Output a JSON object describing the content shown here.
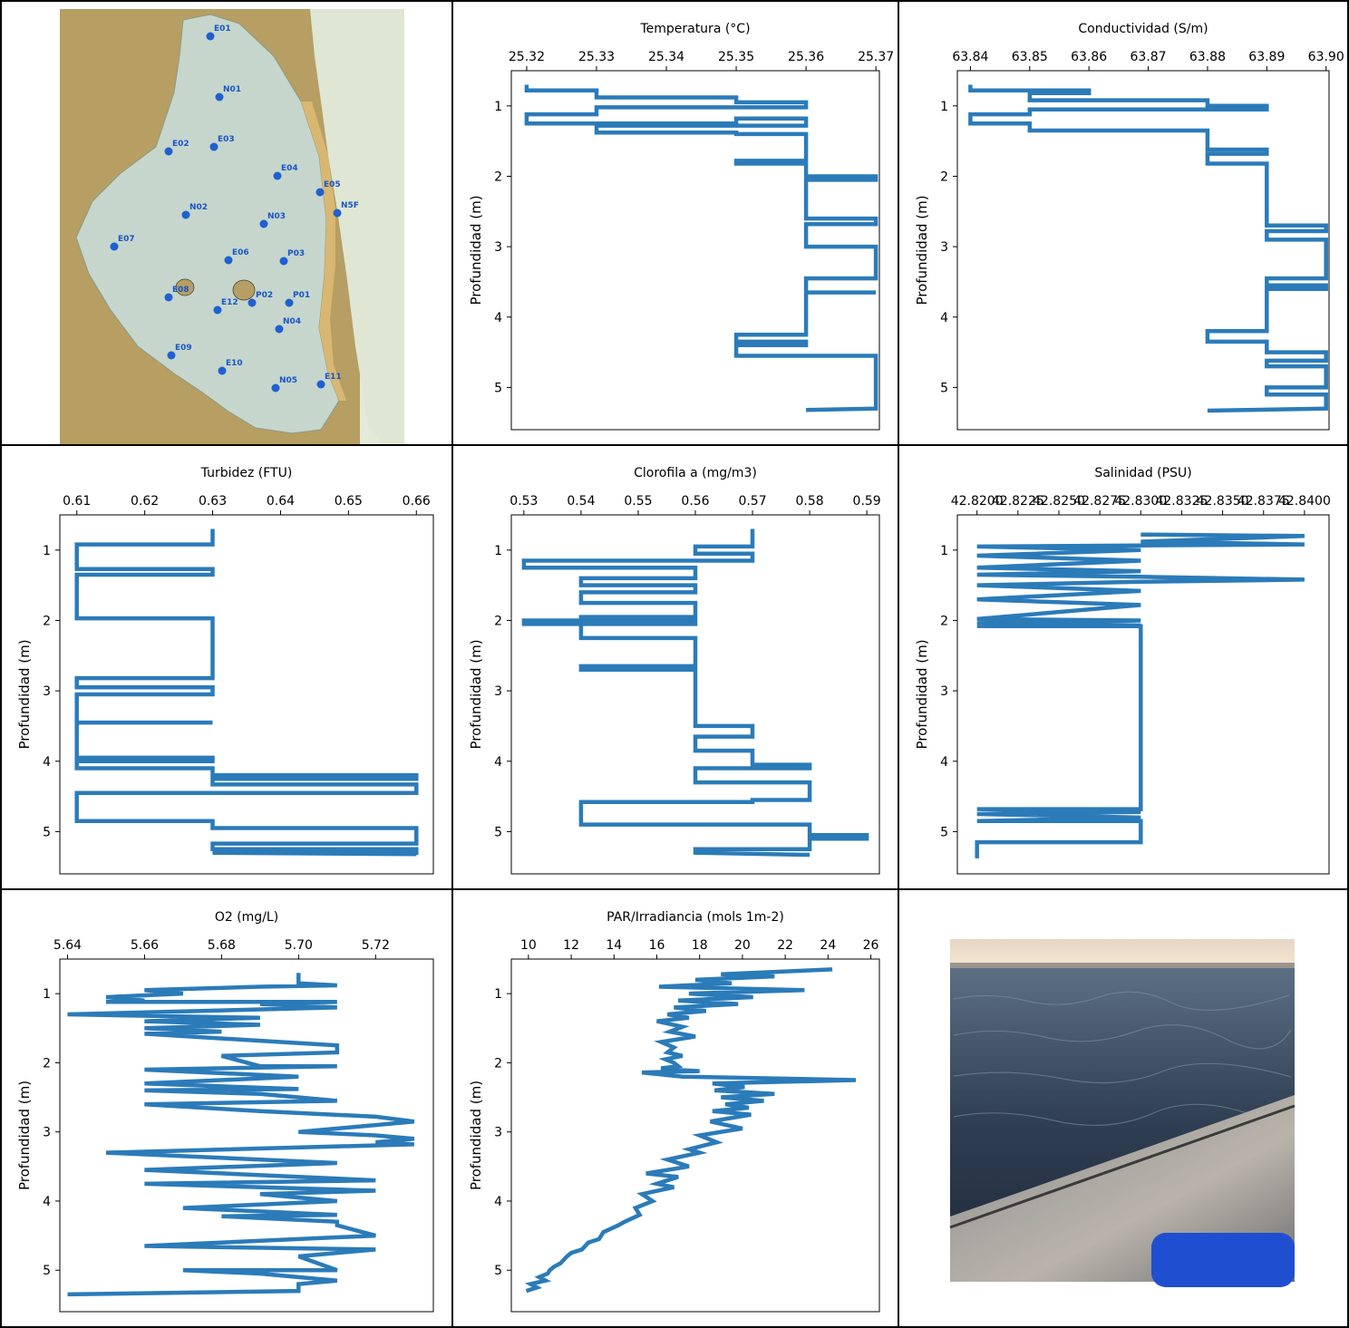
{
  "map": {
    "stations": [
      {
        "id": "E01",
        "label": "E01"
      },
      {
        "id": "N01",
        "label": "N01"
      },
      {
        "id": "E02",
        "label": "E02"
      },
      {
        "id": "E03",
        "label": "E03"
      },
      {
        "id": "E04",
        "label": "E04"
      },
      {
        "id": "E05",
        "label": "E05"
      },
      {
        "id": "N5F",
        "label": "N5F"
      },
      {
        "id": "N02",
        "label": "N02"
      },
      {
        "id": "N03",
        "label": "N03"
      },
      {
        "id": "E07",
        "label": "E07"
      },
      {
        "id": "E06",
        "label": "E06"
      },
      {
        "id": "P03",
        "label": "P03"
      },
      {
        "id": "E08",
        "label": "E08"
      },
      {
        "id": "E12",
        "label": "E12"
      },
      {
        "id": "P02",
        "label": "P02"
      },
      {
        "id": "P01",
        "label": "P01"
      },
      {
        "id": "N04",
        "label": "N04"
      },
      {
        "id": "E09",
        "label": "E09"
      },
      {
        "id": "E10",
        "label": "E10"
      },
      {
        "id": "N05",
        "label": "N05"
      },
      {
        "id": "E11",
        "label": "E11"
      }
    ],
    "colors": {
      "water": "#c6d6cc",
      "land": "#b79e62",
      "station": "#1f5fd1"
    }
  },
  "chart_data": [
    {
      "type": "line",
      "title": "Temperatura (°C)",
      "ylabel": "Profundidad (m)",
      "xlim": [
        25.3178,
        25.3705
      ],
      "ylim": [
        5.6,
        0.5
      ],
      "y_inverted": true,
      "xticks": [
        "25.32",
        "25.33",
        "25.34",
        "25.35",
        "25.36",
        "25.37"
      ],
      "xtick_values": [
        25.32,
        25.33,
        25.34,
        25.35,
        25.36,
        25.37
      ],
      "yticks": [
        "1",
        "2",
        "3",
        "4",
        "5"
      ],
      "ytick_values": [
        1,
        2,
        3,
        4,
        5
      ],
      "x": [
        25.32,
        25.32,
        25.33,
        25.33,
        25.35,
        25.35,
        25.36,
        25.36,
        25.33,
        25.33,
        25.32,
        25.32,
        25.35,
        25.35,
        25.36,
        25.36,
        25.33,
        25.33,
        25.35,
        25.35,
        25.36,
        25.36,
        25.35,
        25.35,
        25.36,
        25.36,
        25.37,
        25.37,
        25.36,
        25.36,
        25.37,
        25.37,
        25.36,
        25.36,
        25.37,
        25.37,
        25.36,
        25.36,
        25.37,
        25.37,
        25.36,
        25.36,
        25.35,
        25.35,
        25.36,
        25.36,
        25.35,
        25.35,
        25.36,
        25.36,
        25.37,
        25.37,
        25.36
      ],
      "y": [
        0.7,
        0.78,
        0.78,
        0.88,
        0.88,
        0.95,
        0.95,
        1.02,
        1.02,
        1.12,
        1.12,
        1.25,
        1.25,
        1.18,
        1.18,
        1.28,
        1.28,
        1.38,
        1.38,
        1.4,
        1.4,
        1.78,
        1.78,
        1.82,
        1.82,
        2.0,
        2.0,
        2.05,
        2.05,
        2.6,
        2.6,
        2.68,
        2.68,
        3.0,
        3.0,
        3.45,
        3.45,
        3.65,
        3.65,
        3.65,
        3.65,
        4.25,
        4.25,
        4.35,
        4.35,
        4.4,
        4.4,
        4.55,
        4.55,
        4.55,
        4.55,
        5.3,
        5.32
      ],
      "color": "#2b7bb9"
    },
    {
      "type": "line",
      "title": "Conductividad (S/m)",
      "ylabel": "Profundidad (m)",
      "xlim": [
        63.8378,
        63.9005
      ],
      "ylim": [
        5.6,
        0.5
      ],
      "y_inverted": true,
      "xticks": [
        "63.84",
        "63.85",
        "63.86",
        "63.87",
        "63.88",
        "63.89",
        "63.90"
      ],
      "xtick_values": [
        63.84,
        63.85,
        63.86,
        63.87,
        63.88,
        63.89,
        63.9
      ],
      "yticks": [
        "1",
        "2",
        "3",
        "4",
        "5"
      ],
      "ytick_values": [
        1,
        2,
        3,
        4,
        5
      ],
      "x": [
        63.84,
        63.84,
        63.86,
        63.86,
        63.85,
        63.85,
        63.88,
        63.88,
        63.89,
        63.89,
        63.85,
        63.85,
        63.84,
        63.84,
        63.85,
        63.85,
        63.88,
        63.88,
        63.88,
        63.88,
        63.89,
        63.89,
        63.88,
        63.88,
        63.89,
        63.89,
        63.9,
        63.9,
        63.89,
        63.89,
        63.9,
        63.9,
        63.89,
        63.89,
        63.9,
        63.9,
        63.89,
        63.89,
        63.88,
        63.88,
        63.89,
        63.89,
        63.9,
        63.9,
        63.89,
        63.89,
        63.9,
        63.9,
        63.89,
        63.89,
        63.9,
        63.9,
        63.88
      ],
      "y": [
        0.7,
        0.78,
        0.78,
        0.82,
        0.82,
        0.92,
        0.92,
        1.0,
        1.0,
        1.05,
        1.05,
        1.12,
        1.12,
        1.25,
        1.25,
        1.35,
        1.35,
        1.4,
        1.4,
        1.62,
        1.62,
        1.68,
        1.68,
        1.82,
        1.82,
        2.7,
        2.7,
        2.78,
        2.78,
        2.9,
        2.9,
        3.45,
        3.45,
        3.55,
        3.55,
        3.6,
        3.6,
        4.2,
        4.2,
        4.35,
        4.35,
        4.5,
        4.5,
        4.62,
        4.62,
        4.7,
        4.7,
        5.0,
        5.0,
        5.1,
        5.1,
        5.3,
        5.33
      ],
      "color": "#2b7bb9"
    },
    {
      "type": "line",
      "title": "Turbidez (FTU)",
      "ylabel": "Profundidad (m)",
      "xlim": [
        0.6075,
        0.6625
      ],
      "ylim": [
        5.6,
        0.5
      ],
      "y_inverted": true,
      "xticks": [
        "0.61",
        "0.62",
        "0.63",
        "0.64",
        "0.65",
        "0.66"
      ],
      "xtick_values": [
        0.61,
        0.62,
        0.63,
        0.64,
        0.65,
        0.66
      ],
      "yticks": [
        "1",
        "2",
        "3",
        "4",
        "5"
      ],
      "ytick_values": [
        1,
        2,
        3,
        4,
        5
      ],
      "x": [
        0.63,
        0.63,
        0.61,
        0.61,
        0.63,
        0.63,
        0.61,
        0.61,
        0.63,
        0.63,
        0.61,
        0.61,
        0.63,
        0.63,
        0.61,
        0.61,
        0.63,
        0.63,
        0.61,
        0.61,
        0.63,
        0.63,
        0.61,
        0.61,
        0.63,
        0.63,
        0.66,
        0.66,
        0.63,
        0.63,
        0.66,
        0.66,
        0.63,
        0.63,
        0.61,
        0.61,
        0.63,
        0.63,
        0.66,
        0.66,
        0.63,
        0.63,
        0.66,
        0.66,
        0.63,
        0.63,
        0.66
      ],
      "y": [
        0.7,
        0.92,
        0.92,
        1.27,
        1.27,
        1.35,
        1.35,
        1.97,
        1.97,
        2.82,
        2.82,
        2.95,
        2.95,
        3.05,
        3.05,
        3.45,
        3.45,
        3.45,
        3.45,
        3.95,
        3.95,
        4.0,
        4.0,
        4.1,
        4.1,
        4.2,
        4.2,
        4.25,
        4.25,
        4.33,
        4.33,
        4.45,
        4.45,
        4.45,
        4.45,
        4.85,
        4.85,
        4.95,
        4.95,
        5.17,
        5.17,
        5.25,
        5.25,
        5.3,
        5.3,
        5.3,
        5.32
      ],
      "color": "#2b7bb9"
    },
    {
      "type": "line",
      "title": "Clorofila a (mg/m3)",
      "ylabel": "Profundidad (m)",
      "xlim": [
        0.5278,
        0.5922
      ],
      "ylim": [
        5.6,
        0.5
      ],
      "y_inverted": true,
      "xticks": [
        "0.53",
        "0.54",
        "0.55",
        "0.56",
        "0.57",
        "0.58",
        "0.59"
      ],
      "xtick_values": [
        0.53,
        0.54,
        0.55,
        0.56,
        0.57,
        0.58,
        0.59
      ],
      "yticks": [
        "1",
        "2",
        "3",
        "4",
        "5"
      ],
      "ytick_values": [
        1,
        2,
        3,
        4,
        5
      ],
      "x": [
        0.57,
        0.57,
        0.56,
        0.56,
        0.57,
        0.57,
        0.53,
        0.53,
        0.56,
        0.56,
        0.54,
        0.54,
        0.56,
        0.56,
        0.54,
        0.54,
        0.56,
        0.56,
        0.54,
        0.54,
        0.56,
        0.56,
        0.53,
        0.53,
        0.54,
        0.54,
        0.56,
        0.56,
        0.54,
        0.54,
        0.56,
        0.56,
        0.57,
        0.57,
        0.56,
        0.56,
        0.57,
        0.57,
        0.58,
        0.58,
        0.56,
        0.56,
        0.58,
        0.58,
        0.57,
        0.57,
        0.54,
        0.54,
        0.56,
        0.56,
        0.58,
        0.58,
        0.59,
        0.59,
        0.58,
        0.58,
        0.56,
        0.56,
        0.58
      ],
      "y": [
        0.7,
        0.95,
        0.95,
        1.05,
        1.05,
        1.15,
        1.15,
        1.25,
        1.25,
        1.4,
        1.4,
        1.5,
        1.5,
        1.6,
        1.6,
        1.75,
        1.75,
        1.95,
        1.95,
        2.05,
        2.05,
        2.0,
        2.0,
        2.05,
        2.05,
        2.25,
        2.25,
        2.65,
        2.65,
        2.7,
        2.7,
        3.5,
        3.5,
        3.65,
        3.65,
        3.85,
        3.85,
        4.05,
        4.05,
        4.1,
        4.1,
        4.3,
        4.3,
        4.55,
        4.55,
        4.58,
        4.58,
        4.9,
        4.9,
        4.9,
        4.9,
        5.05,
        5.05,
        5.1,
        5.1,
        5.25,
        5.25,
        5.3,
        5.33
      ],
      "color": "#2b7bb9"
    },
    {
      "type": "line",
      "title": "Salinidad (PSU)",
      "ylabel": "Profundidad (m)",
      "xlim": [
        42.8188,
        42.8415
      ],
      "ylim": [
        5.6,
        0.5
      ],
      "y_inverted": true,
      "xticks": [
        "42.8200",
        "42.8225",
        "42.8250",
        "42.8275",
        "42.8300",
        "42.8325",
        "42.8350",
        "42.8375",
        "42.8400"
      ],
      "xtick_values": [
        42.82,
        42.8225,
        42.825,
        42.8275,
        42.83,
        42.8325,
        42.835,
        42.8375,
        42.84
      ],
      "yticks": [
        "1",
        "2",
        "3",
        "4",
        "5"
      ],
      "ytick_values": [
        1,
        2,
        3,
        4,
        5
      ],
      "x": [
        42.83,
        42.84,
        42.83,
        42.84,
        42.82,
        42.83,
        42.82,
        42.83,
        42.82,
        42.83,
        42.82,
        42.83,
        42.84,
        42.83,
        42.82,
        42.83,
        42.82,
        42.83,
        42.82,
        42.83,
        42.82,
        42.83,
        42.82,
        42.83,
        42.82,
        42.83,
        42.83,
        42.82,
        42.83,
        42.82,
        42.83,
        42.82,
        42.83,
        42.83,
        42.82,
        42.82
      ],
      "y": [
        0.78,
        0.8,
        0.88,
        0.92,
        0.95,
        1.0,
        1.08,
        1.15,
        1.25,
        1.3,
        1.35,
        1.38,
        1.42,
        1.45,
        1.5,
        1.58,
        1.7,
        1.78,
        1.98,
        2.0,
        2.04,
        2.07,
        2.07,
        2.08,
        2.08,
        2.08,
        4.68,
        4.68,
        4.72,
        4.75,
        4.8,
        4.85,
        4.85,
        5.15,
        5.15,
        5.38
      ],
      "color": "#2b7bb9"
    },
    {
      "type": "line",
      "title": "O2 (mg/L)",
      "ylabel": "Profundidad (m)",
      "xlim": [
        5.638,
        5.735
      ],
      "ylim": [
        5.6,
        0.5
      ],
      "y_inverted": true,
      "xticks": [
        "5.64",
        "5.66",
        "5.68",
        "5.70",
        "5.72"
      ],
      "xtick_values": [
        5.64,
        5.66,
        5.68,
        5.7,
        5.72
      ],
      "yticks": [
        "1",
        "2",
        "3",
        "4",
        "5"
      ],
      "ytick_values": [
        1,
        2,
        3,
        4,
        5
      ],
      "x": [
        5.7,
        5.7,
        5.71,
        5.69,
        5.66,
        5.67,
        5.65,
        5.66,
        5.65,
        5.71,
        5.69,
        5.71,
        5.64,
        5.69,
        5.66,
        5.69,
        5.66,
        5.68,
        5.66,
        5.71,
        5.71,
        5.68,
        5.69,
        5.71,
        5.66,
        5.7,
        5.66,
        5.7,
        5.66,
        5.69,
        5.71,
        5.66,
        5.69,
        5.72,
        5.73,
        5.72,
        5.7,
        5.72,
        5.73,
        5.72,
        5.73,
        5.65,
        5.71,
        5.66,
        5.72,
        5.66,
        5.72,
        5.69,
        5.71,
        5.67,
        5.71,
        5.68,
        5.71,
        5.71,
        5.72,
        5.66,
        5.72,
        5.7,
        5.71,
        5.67,
        5.69,
        5.7,
        5.71,
        5.7,
        5.7,
        5.64
      ],
      "y": [
        0.7,
        0.85,
        0.88,
        0.9,
        0.95,
        1.0,
        1.05,
        1.1,
        1.12,
        1.12,
        1.15,
        1.2,
        1.3,
        1.35,
        1.4,
        1.45,
        1.5,
        1.55,
        1.58,
        1.75,
        1.85,
        1.9,
        2.05,
        2.05,
        2.1,
        2.2,
        2.3,
        2.38,
        2.4,
        2.45,
        2.55,
        2.6,
        2.7,
        2.78,
        2.85,
        2.9,
        3.0,
        3.05,
        3.1,
        3.15,
        3.18,
        3.3,
        3.45,
        3.55,
        3.7,
        3.75,
        3.85,
        3.9,
        4.0,
        4.1,
        4.2,
        4.22,
        4.3,
        4.35,
        4.5,
        4.65,
        4.7,
        4.8,
        5.0,
        5.0,
        5.05,
        5.1,
        5.15,
        5.2,
        5.3,
        5.35
      ],
      "color": "#2b7bb9"
    },
    {
      "type": "line",
      "title": "PAR/Irradiancia (mols 1m-2)",
      "ylabel": "Profundidad (m)",
      "xlim": [
        9.2,
        26.4
      ],
      "ylim": [
        5.6,
        0.5
      ],
      "y_inverted": true,
      "xticks": [
        "10",
        "12",
        "14",
        "16",
        "18",
        "20",
        "22",
        "24",
        "26"
      ],
      "xtick_values": [
        10,
        12,
        14,
        16,
        18,
        20,
        22,
        24,
        26
      ],
      "yticks": [
        "1",
        "2",
        "3",
        "4",
        "5"
      ],
      "ytick_values": [
        1,
        2,
        3,
        4,
        5
      ],
      "x": [
        24.2,
        19,
        21.5,
        17.8,
        19.5,
        16.1,
        22.9,
        17.5,
        20.5,
        17,
        19.8,
        16.8,
        18.3,
        16.5,
        17.5,
        16,
        17.2,
        16.6,
        17.8,
        16.2,
        16.8,
        16.5,
        17.2,
        16.4,
        16.8,
        17,
        16.2,
        16.6,
        18,
        15.3,
        17.2,
        25.3,
        18.6,
        20.1,
        18.7,
        21.5,
        19,
        21,
        19.2,
        20.3,
        18.6,
        20.4,
        18.5,
        20,
        18,
        18.8,
        17.5,
        18,
        16.5,
        17.5,
        15.5,
        17,
        16,
        16.8,
        15.3,
        15.8,
        15,
        15.2,
        14.5,
        14.2,
        13.5,
        13.3,
        12.8,
        12.5,
        12,
        11.8,
        11.5,
        11.2,
        11,
        10.9,
        10.5,
        10.8,
        10.1,
        10.4,
        9.9
      ],
      "y": [
        0.65,
        0.72,
        0.75,
        0.8,
        0.85,
        0.9,
        0.95,
        1.0,
        1.05,
        1.1,
        1.15,
        1.2,
        1.25,
        1.3,
        1.35,
        1.4,
        1.48,
        1.55,
        1.62,
        1.7,
        1.78,
        1.85,
        1.9,
        1.95,
        2.0,
        2.05,
        2.08,
        2.1,
        2.12,
        2.14,
        2.2,
        2.25,
        2.3,
        2.35,
        2.4,
        2.45,
        2.5,
        2.55,
        2.6,
        2.65,
        2.7,
        2.75,
        2.85,
        2.95,
        3.05,
        3.15,
        3.25,
        3.3,
        3.4,
        3.5,
        3.6,
        3.65,
        3.75,
        3.8,
        3.9,
        4.0,
        4.1,
        4.2,
        4.3,
        4.35,
        4.45,
        4.55,
        4.6,
        4.7,
        4.75,
        4.8,
        4.9,
        4.95,
        5.0,
        5.05,
        5.1,
        5.15,
        5.2,
        5.25,
        5.3
      ],
      "color": "#2b7bb9"
    }
  ]
}
